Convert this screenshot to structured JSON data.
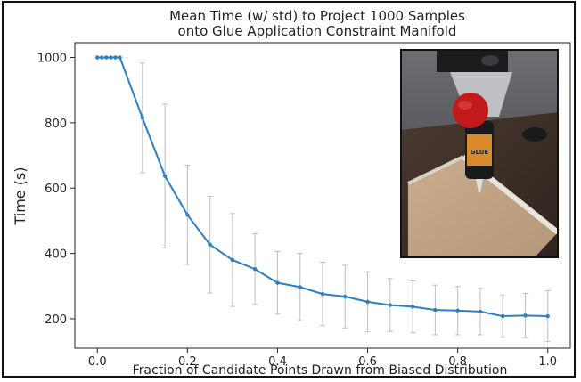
{
  "chart_data": {
    "type": "line",
    "title_lines": [
      "Mean Time (w/ std) to Project 1000 Samples",
      "onto Glue Application Constraint Manifold"
    ],
    "xlabel": "Fraction of Candidate Points Drawn from Biased Distribution",
    "ylabel": "Time (s)",
    "xlim": [
      -0.05,
      1.05
    ],
    "ylim": [
      110,
      1045
    ],
    "x_ticks": [
      0.0,
      0.2,
      0.4,
      0.6,
      0.8,
      1.0
    ],
    "x_tick_labels": [
      "0.0",
      "0.2",
      "0.4",
      "0.6",
      "0.8",
      "1.0"
    ],
    "y_ticks": [
      200,
      400,
      600,
      800,
      1000
    ],
    "y_tick_labels": [
      "200",
      "400",
      "600",
      "800",
      "1000"
    ],
    "grid": false,
    "series": [
      {
        "color": "#2e7fc2",
        "x": [
          0.0,
          0.01,
          0.02,
          0.03,
          0.04,
          0.05,
          0.1,
          0.15,
          0.2,
          0.25,
          0.3,
          0.35,
          0.4,
          0.45,
          0.5,
          0.55,
          0.6,
          0.65,
          0.7,
          0.75,
          0.8,
          0.85,
          0.9,
          0.95,
          1.0
        ],
        "y": [
          1000,
          1000,
          1000,
          1000,
          1000,
          1000,
          815,
          637,
          518,
          427,
          380,
          352,
          310,
          297,
          276,
          268,
          252,
          242,
          237,
          227,
          225,
          222,
          208,
          210,
          208
        ],
        "std": [
          0,
          0,
          0,
          0,
          0,
          0,
          168,
          220,
          152,
          148,
          142,
          108,
          96,
          103,
          97,
          96,
          92,
          81,
          79,
          76,
          74,
          71,
          65,
          68,
          78
        ]
      }
    ],
    "inset_photo": "glue bottle mounted on robot arm tip above cardboard box"
  },
  "colors": {
    "line": "#2e7fc2",
    "errorbar": "#bdbdbd",
    "axis": "#222222"
  }
}
